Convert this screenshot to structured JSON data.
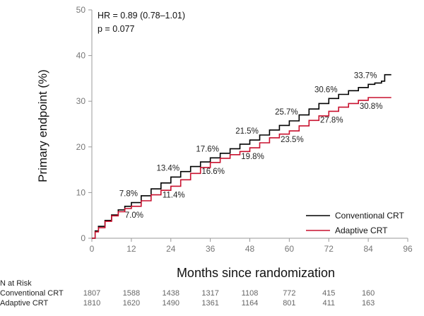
{
  "chart_data": {
    "type": "line",
    "xlabel": "Months since randomization",
    "ylabel": "Primary endpoint (%)",
    "xlim": [
      0,
      96
    ],
    "ylim": [
      0,
      50
    ],
    "x_ticks": [
      0,
      12,
      24,
      36,
      48,
      60,
      72,
      84,
      96
    ],
    "y_ticks": [
      0,
      10,
      20,
      30,
      40,
      50
    ],
    "grid": false,
    "legend_position": "bottom-right",
    "annotations": [
      "HR = 0.89 (0.78–1.01)",
      "p = 0.077"
    ],
    "series": [
      {
        "name": "Conventional CRT",
        "color": "#000000",
        "x": [
          0,
          1,
          2,
          4,
          6,
          8,
          10,
          12,
          15,
          18,
          21,
          24,
          27,
          30,
          33,
          36,
          39,
          42,
          45,
          48,
          51,
          54,
          57,
          60,
          63,
          66,
          69,
          72,
          75,
          78,
          81,
          84,
          86,
          88,
          89,
          90,
          91
        ],
        "y": [
          0,
          1.6,
          2.6,
          3.9,
          5.1,
          6.2,
          7.0,
          7.8,
          9.3,
          10.8,
          12.1,
          13.4,
          14.6,
          15.7,
          16.7,
          17.6,
          18.6,
          19.6,
          20.6,
          21.5,
          22.6,
          23.7,
          24.7,
          25.7,
          27.0,
          28.3,
          29.5,
          30.6,
          31.5,
          32.3,
          33.0,
          33.7,
          34.0,
          34.4,
          35.8,
          35.8,
          35.8
        ],
        "labels": [
          {
            "x": 12,
            "y": 7.8,
            "text": "7.8%"
          },
          {
            "x": 24,
            "y": 13.4,
            "text": "13.4%"
          },
          {
            "x": 36,
            "y": 17.6,
            "text": "17.6%"
          },
          {
            "x": 48,
            "y": 21.5,
            "text": "21.5%"
          },
          {
            "x": 60,
            "y": 25.7,
            "text": "25.7%"
          },
          {
            "x": 72,
            "y": 30.6,
            "text": "30.6%"
          },
          {
            "x": 84,
            "y": 33.7,
            "text": "33.7%"
          }
        ]
      },
      {
        "name": "Adaptive CRT",
        "color": "#c8102e",
        "x": [
          0,
          1,
          2,
          4,
          6,
          8,
          10,
          12,
          15,
          18,
          21,
          24,
          27,
          30,
          33,
          36,
          39,
          42,
          45,
          48,
          51,
          54,
          57,
          60,
          63,
          66,
          69,
          72,
          75,
          78,
          81,
          84,
          86,
          88,
          90,
          91
        ],
        "y": [
          0,
          1.4,
          2.3,
          3.7,
          4.9,
          5.8,
          6.5,
          7.0,
          8.2,
          9.5,
          10.5,
          11.4,
          12.8,
          14.2,
          15.5,
          16.6,
          17.5,
          18.3,
          19.0,
          19.8,
          20.9,
          22.0,
          22.8,
          23.5,
          24.6,
          25.8,
          26.8,
          27.8,
          28.7,
          29.5,
          30.2,
          30.8,
          30.8,
          30.8,
          30.8,
          30.8
        ],
        "labels": [
          {
            "x": 12,
            "y": 7.0,
            "text": "7.0%"
          },
          {
            "x": 24,
            "y": 11.4,
            "text": "11.4%"
          },
          {
            "x": 36,
            "y": 16.6,
            "text": "16.6%"
          },
          {
            "x": 48,
            "y": 19.8,
            "text": "19.8%"
          },
          {
            "x": 60,
            "y": 23.5,
            "text": "23.5%"
          },
          {
            "x": 72,
            "y": 27.8,
            "text": "27.8%"
          },
          {
            "x": 84,
            "y": 30.8,
            "text": "30.8%"
          }
        ]
      }
    ]
  },
  "risk_table": {
    "title": "N at Risk",
    "timepoints": [
      0,
      12,
      24,
      36,
      48,
      60,
      72,
      84
    ],
    "rows": [
      {
        "label": "Conventional CRT",
        "values": [
          "1807",
          "1588",
          "1438",
          "1317",
          "1108",
          "772",
          "415",
          "160"
        ]
      },
      {
        "label": "Adaptive CRT",
        "values": [
          "1810",
          "1620",
          "1490",
          "1361",
          "1164",
          "801",
          "411",
          "163"
        ]
      }
    ]
  }
}
